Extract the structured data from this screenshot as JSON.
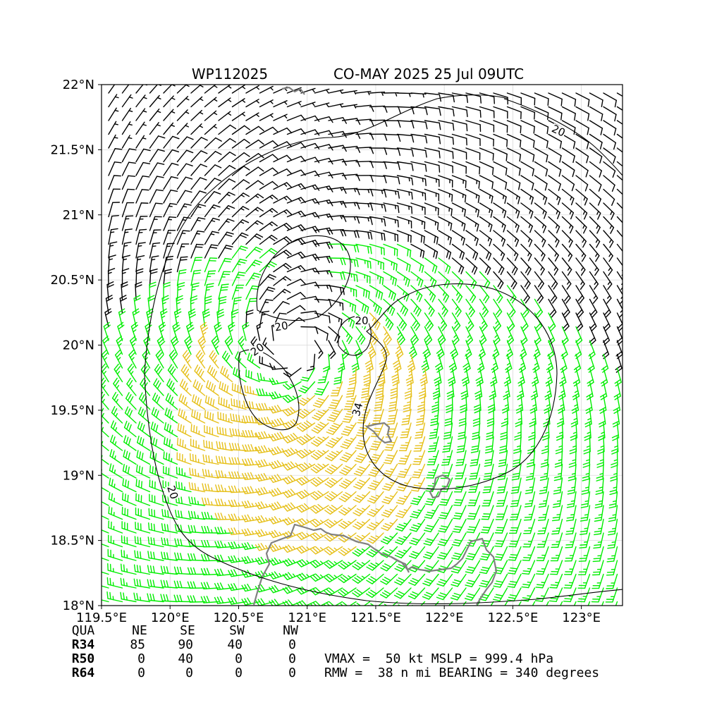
{
  "chart_data": {
    "type": "wind_barb_map",
    "title_left": "WP112025",
    "title_right": "CO-MAY 2025 25 Jul 09UTC",
    "x_ticks": [
      "119.5°E",
      "120°E",
      "120.5°E",
      "121°E",
      "121.5°E",
      "122°E",
      "122.5°E",
      "123°E"
    ],
    "x_tick_values": [
      119.5,
      120.0,
      120.5,
      121.0,
      121.5,
      122.0,
      122.5,
      123.0
    ],
    "y_ticks": [
      "22°N",
      "21.5°N",
      "21°N",
      "20.5°N",
      "20°N",
      "19.5°N",
      "19°N",
      "18.5°N",
      "18°N"
    ],
    "y_tick_values": [
      22.0,
      21.5,
      21.0,
      20.5,
      20.0,
      19.5,
      19.0,
      18.5,
      18.0
    ],
    "xlim": [
      119.5,
      123.3
    ],
    "ylim": [
      18.0,
      22.0
    ],
    "grid": true,
    "storm": {
      "center_lon": 120.9,
      "center_lat": 20.0,
      "vmax_kt": 50,
      "rmw_nmi": 38,
      "mslp_hpa": 999.4,
      "bearing_deg": 340
    },
    "barb_colors": {
      "below_20kt": "#000000",
      "kt_20_to_34": "#00ee00",
      "kt_34_to_50": "#e6c01a"
    },
    "contour_labels": [
      "20",
      "20",
      "20",
      "20",
      "20",
      "34"
    ],
    "wind_radii_table": {
      "header": [
        "QUA",
        "NE",
        "SE",
        "SW",
        "NW"
      ],
      "rows": [
        {
          "label": "R34",
          "values": [
            "85",
            "90",
            "40",
            "0"
          ]
        },
        {
          "label": "R50",
          "values": [
            "0",
            "40",
            "0",
            "0"
          ]
        },
        {
          "label": "R64",
          "values": [
            "0",
            "0",
            "0",
            "0"
          ]
        }
      ]
    },
    "summary_line1": "VMAX =  50 kt MSLP = 999.4 hPa",
    "summary_line2": "RMW =  38 n mi BEARING = 340 degrees"
  }
}
